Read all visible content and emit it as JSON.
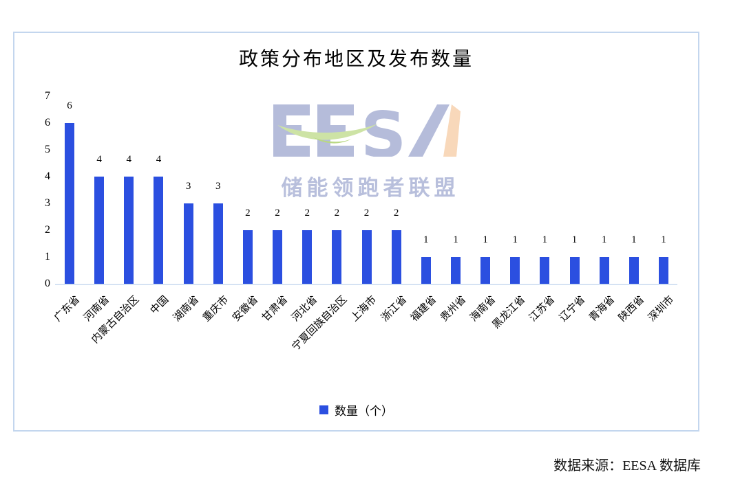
{
  "title": "政策分布地区及发布数量",
  "watermark": {
    "logo_text": "EESA",
    "logo_subtext": "储能领跑者联盟"
  },
  "legend": {
    "label": "数量（个）"
  },
  "footer": {
    "source_label": "数据来源：EESA 数据库"
  },
  "colors": {
    "bar": "#2b4fe0",
    "frame_border": "#c3d6ee",
    "axis_line": "#d5e2f3",
    "watermark_letters": "#b5bcda",
    "watermark_green": "#cde3a5",
    "watermark_peach": "#f8d8ba",
    "watermark_subtext": "#b8bfdc"
  },
  "chart_data": {
    "type": "bar",
    "title": "政策分布地区及发布数量",
    "series_name": "数量（个）",
    "categories": [
      "广东省",
      "河南省",
      "内蒙古自治区",
      "中国",
      "湖南省",
      "重庆市",
      "安徽省",
      "甘肃省",
      "河北省",
      "宁夏回族自治区",
      "上海市",
      "浙江省",
      "福建省",
      "贵州省",
      "海南省",
      "黑龙江省",
      "江苏省",
      "辽宁省",
      "青海省",
      "陕西省",
      "深圳市"
    ],
    "values": [
      6,
      4,
      4,
      4,
      3,
      3,
      2,
      2,
      2,
      2,
      2,
      2,
      1,
      1,
      1,
      1,
      1,
      1,
      1,
      1,
      1
    ],
    "xlabel": "",
    "ylabel": "",
    "ylim": [
      0,
      7
    ],
    "yticks": [
      0,
      1,
      2,
      3,
      4,
      5,
      6,
      7
    ],
    "grid": false,
    "data_labels": true,
    "legend_position": "bottom",
    "bar_color": "#2b4fe0"
  }
}
